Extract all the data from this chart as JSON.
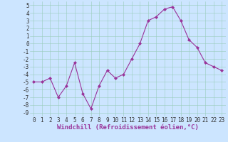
{
  "x": [
    0,
    1,
    2,
    3,
    4,
    5,
    6,
    7,
    8,
    9,
    10,
    11,
    12,
    13,
    14,
    15,
    16,
    17,
    18,
    19,
    20,
    21,
    22,
    23
  ],
  "y": [
    -5,
    -5,
    -4.5,
    -7,
    -5.5,
    -2.5,
    -6.5,
    -8.5,
    -5.5,
    -3.5,
    -4.5,
    -4,
    -2,
    0,
    3,
    3.5,
    4.5,
    4.8,
    3,
    0.5,
    -0.5,
    -2.5,
    -3,
    -3.5
  ],
  "xlim": [
    -0.5,
    23.5
  ],
  "ylim": [
    -9.5,
    5.5
  ],
  "yticks": [
    5,
    4,
    3,
    2,
    1,
    0,
    -1,
    -2,
    -3,
    -4,
    -5,
    -6,
    -7,
    -8,
    -9
  ],
  "xticks": [
    0,
    1,
    2,
    3,
    4,
    5,
    6,
    7,
    8,
    9,
    10,
    11,
    12,
    13,
    14,
    15,
    16,
    17,
    18,
    19,
    20,
    21,
    22,
    23
  ],
  "xlabel": "Windchill (Refroidissement éolien,°C)",
  "line_color": "#993399",
  "marker": "D",
  "marker_size": 2,
  "bg_color": "#cce5ff",
  "grid_color": "#99ccbb",
  "axis_label_fontsize": 6.5,
  "tick_fontsize": 5.5,
  "fig_width": 3.2,
  "fig_height": 2.0,
  "dpi": 100
}
